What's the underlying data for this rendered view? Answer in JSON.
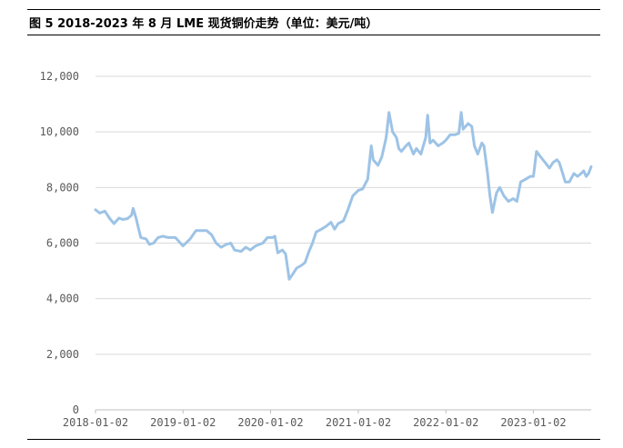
{
  "header": {
    "title": "图 5 2018-2023 年 8 月 LME 现货铜价走势（单位：美元/吨）"
  },
  "chart_data": {
    "type": "line",
    "title": "图 5 2018-2023 年 8 月 LME 现货铜价走势（单位：美元/吨）",
    "xlabel": "",
    "ylabel": "",
    "ylim": [
      0,
      12000
    ],
    "yticks": [
      0,
      2000,
      4000,
      6000,
      8000,
      10000,
      12000
    ],
    "ytick_labels": [
      "0",
      "2,000",
      "4,000",
      "6,000",
      "8,000",
      "10,000",
      "12,000"
    ],
    "xlim": [
      "2018-01-02",
      "2023-08-31"
    ],
    "xtick_labels": [
      "2018-01-02",
      "2019-01-02",
      "2020-01-02",
      "2021-01-02",
      "2022-01-02",
      "2023-01-02"
    ],
    "grid": "horizontal",
    "line_color": "#9dc3e6",
    "series": [
      {
        "points": [
          [
            "2018-01-02",
            7200
          ],
          [
            "2018-01-20",
            7080
          ],
          [
            "2018-02-10",
            7150
          ],
          [
            "2018-03-01",
            6900
          ],
          [
            "2018-03-20",
            6700
          ],
          [
            "2018-04-10",
            6900
          ],
          [
            "2018-04-25",
            6850
          ],
          [
            "2018-05-15",
            6880
          ],
          [
            "2018-06-01",
            7000
          ],
          [
            "2018-06-08",
            7250
          ],
          [
            "2018-06-20",
            6900
          ],
          [
            "2018-07-01",
            6500
          ],
          [
            "2018-07-10",
            6200
          ],
          [
            "2018-08-01",
            6150
          ],
          [
            "2018-08-15",
            5950
          ],
          [
            "2018-09-01",
            6000
          ],
          [
            "2018-09-20",
            6200
          ],
          [
            "2018-10-10",
            6250
          ],
          [
            "2018-11-01",
            6200
          ],
          [
            "2018-12-01",
            6200
          ],
          [
            "2019-01-02",
            5900
          ],
          [
            "2019-02-01",
            6150
          ],
          [
            "2019-02-25",
            6450
          ],
          [
            "2019-03-20",
            6450
          ],
          [
            "2019-04-10",
            6450
          ],
          [
            "2019-05-01",
            6300
          ],
          [
            "2019-05-20",
            6000
          ],
          [
            "2019-06-10",
            5850
          ],
          [
            "2019-07-01",
            5950
          ],
          [
            "2019-07-20",
            6000
          ],
          [
            "2019-08-05",
            5750
          ],
          [
            "2019-09-01",
            5700
          ],
          [
            "2019-09-20",
            5850
          ],
          [
            "2019-10-10",
            5750
          ],
          [
            "2019-11-01",
            5900
          ],
          [
            "2019-12-01",
            6000
          ],
          [
            "2019-12-20",
            6200
          ],
          [
            "2020-01-10",
            6200
          ],
          [
            "2020-01-20",
            6250
          ],
          [
            "2020-02-01",
            5650
          ],
          [
            "2020-02-20",
            5750
          ],
          [
            "2020-03-05",
            5600
          ],
          [
            "2020-03-20",
            4700
          ],
          [
            "2020-04-01",
            4850
          ],
          [
            "2020-04-20",
            5100
          ],
          [
            "2020-05-10",
            5200
          ],
          [
            "2020-05-25",
            5300
          ],
          [
            "2020-06-10",
            5700
          ],
          [
            "2020-06-25",
            6000
          ],
          [
            "2020-07-10",
            6400
          ],
          [
            "2020-08-01",
            6500
          ],
          [
            "2020-08-20",
            6600
          ],
          [
            "2020-09-10",
            6750
          ],
          [
            "2020-09-25",
            6500
          ],
          [
            "2020-10-10",
            6700
          ],
          [
            "2020-11-01",
            6800
          ],
          [
            "2020-11-20",
            7200
          ],
          [
            "2020-12-10",
            7700
          ],
          [
            "2021-01-02",
            7900
          ],
          [
            "2021-01-20",
            7950
          ],
          [
            "2021-02-10",
            8300
          ],
          [
            "2021-02-25",
            9500
          ],
          [
            "2021-03-05",
            9000
          ],
          [
            "2021-03-25",
            8800
          ],
          [
            "2021-04-10",
            9100
          ],
          [
            "2021-04-28",
            9800
          ],
          [
            "2021-05-10",
            10700
          ],
          [
            "2021-05-25",
            10000
          ],
          [
            "2021-06-10",
            9800
          ],
          [
            "2021-06-20",
            9400
          ],
          [
            "2021-07-01",
            9300
          ],
          [
            "2021-07-20",
            9500
          ],
          [
            "2021-08-01",
            9600
          ],
          [
            "2021-08-20",
            9200
          ],
          [
            "2021-09-01",
            9400
          ],
          [
            "2021-09-20",
            9200
          ],
          [
            "2021-10-10",
            9800
          ],
          [
            "2021-10-18",
            10600
          ],
          [
            "2021-10-28",
            9600
          ],
          [
            "2021-11-10",
            9700
          ],
          [
            "2021-12-01",
            9500
          ],
          [
            "2021-12-20",
            9600
          ],
          [
            "2022-01-02",
            9700
          ],
          [
            "2022-01-20",
            9900
          ],
          [
            "2022-02-10",
            9900
          ],
          [
            "2022-02-25",
            9950
          ],
          [
            "2022-03-07",
            10700
          ],
          [
            "2022-03-15",
            10100
          ],
          [
            "2022-04-05",
            10300
          ],
          [
            "2022-04-20",
            10200
          ],
          [
            "2022-05-01",
            9500
          ],
          [
            "2022-05-15",
            9200
          ],
          [
            "2022-06-01",
            9600
          ],
          [
            "2022-06-10",
            9500
          ],
          [
            "2022-06-25",
            8500
          ],
          [
            "2022-07-05",
            7700
          ],
          [
            "2022-07-15",
            7100
          ],
          [
            "2022-08-01",
            7800
          ],
          [
            "2022-08-15",
            8000
          ],
          [
            "2022-09-01",
            7700
          ],
          [
            "2022-09-20",
            7500
          ],
          [
            "2022-10-10",
            7600
          ],
          [
            "2022-10-25",
            7500
          ],
          [
            "2022-11-10",
            8200
          ],
          [
            "2022-12-01",
            8300
          ],
          [
            "2022-12-20",
            8400
          ],
          [
            "2023-01-02",
            8400
          ],
          [
            "2023-01-15",
            9300
          ],
          [
            "2023-02-01",
            9100
          ],
          [
            "2023-02-20",
            8900
          ],
          [
            "2023-03-10",
            8700
          ],
          [
            "2023-03-25",
            8900
          ],
          [
            "2023-04-10",
            9000
          ],
          [
            "2023-04-20",
            8900
          ],
          [
            "2023-05-01",
            8600
          ],
          [
            "2023-05-15",
            8200
          ],
          [
            "2023-06-01",
            8200
          ],
          [
            "2023-06-20",
            8500
          ],
          [
            "2023-07-05",
            8400
          ],
          [
            "2023-07-20",
            8500
          ],
          [
            "2023-07-31",
            8600
          ],
          [
            "2023-08-10",
            8400
          ],
          [
            "2023-08-20",
            8500
          ],
          [
            "2023-08-31",
            8750
          ]
        ]
      }
    ]
  }
}
